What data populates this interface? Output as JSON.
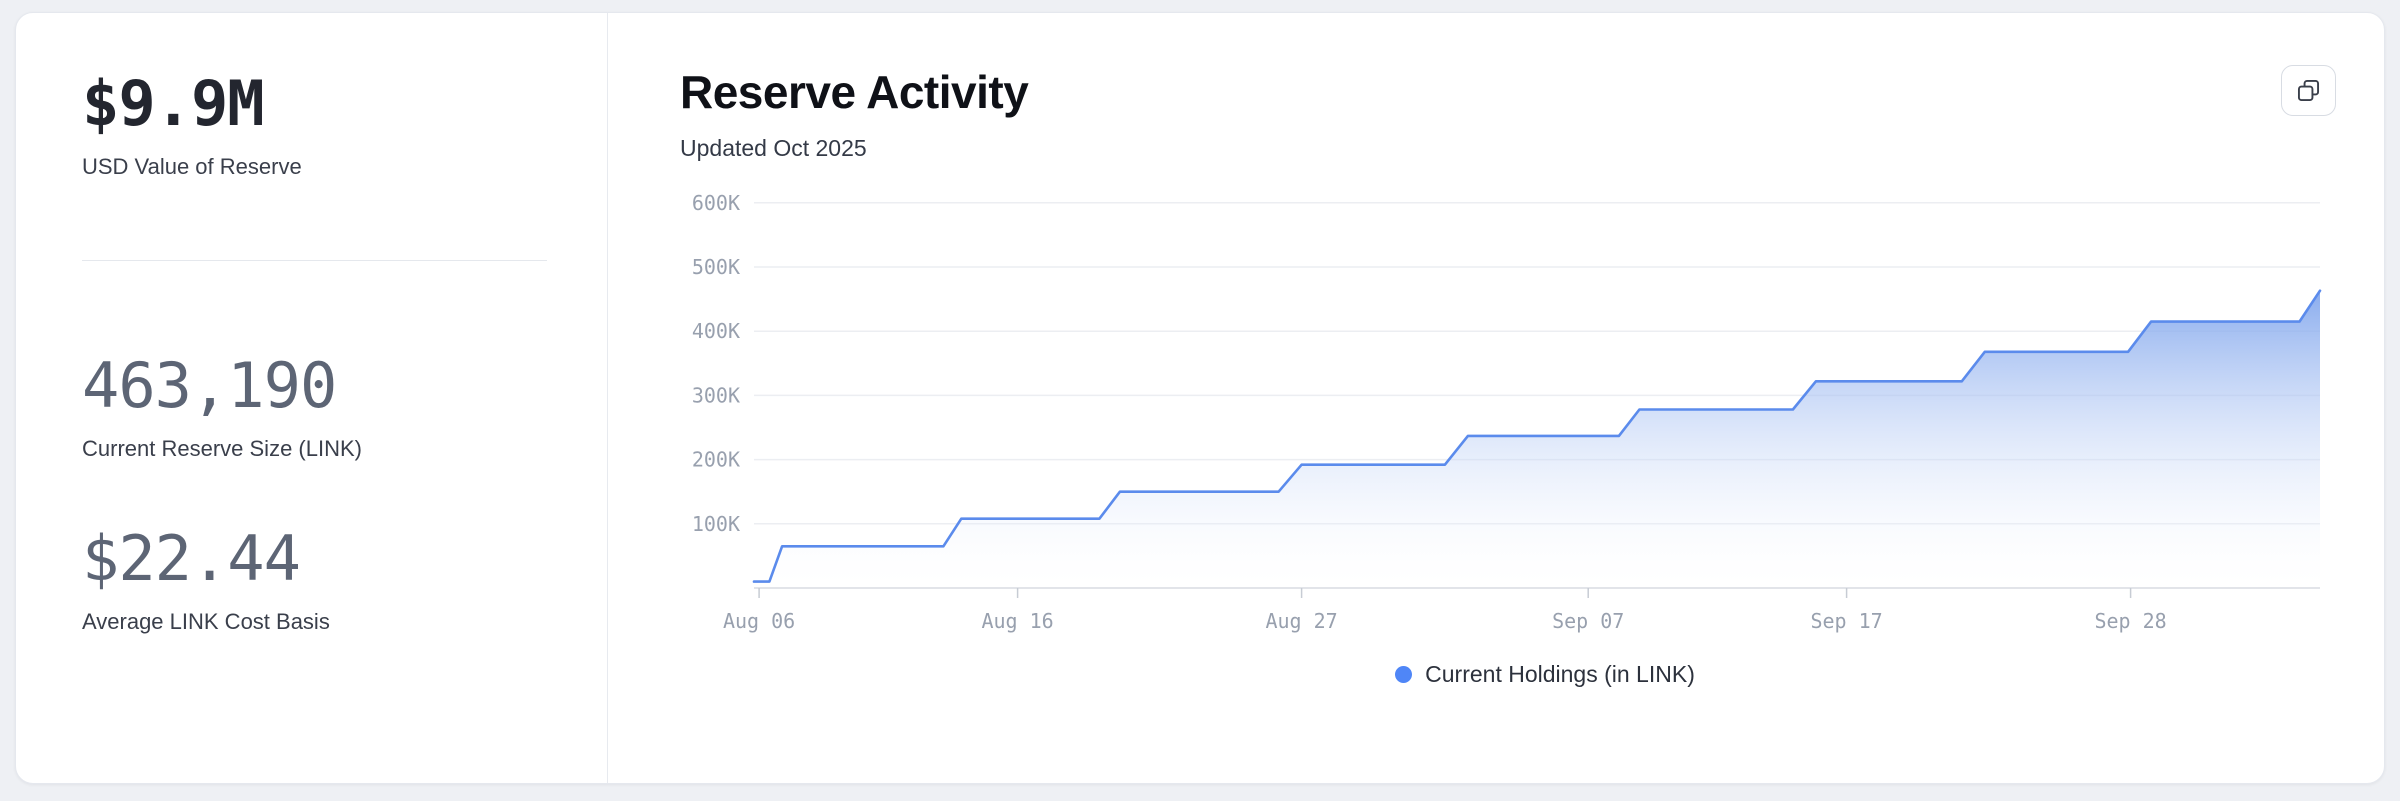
{
  "left_panel": {
    "usd_value": "$9.9M",
    "usd_value_label": "USD Value of Reserve",
    "reserve_size": "463,190",
    "reserve_size_label": "Current Reserve Size (LINK)",
    "cost_basis": "$22.44",
    "cost_basis_label": "Average LINK Cost Basis"
  },
  "chart_header": {
    "title": "Reserve Activity",
    "subtitle": "Updated Oct 2025"
  },
  "icons": {
    "copy": "copy-icon"
  },
  "legend": {
    "label": "Current Holdings (in LINK)",
    "dot_color": "#4f86f7"
  },
  "chart_data": {
    "type": "area",
    "step": true,
    "title": "Reserve Activity",
    "subtitle": "Updated Oct 2025",
    "legend_position": "bottom",
    "grid": true,
    "x_unit": "days since Aug 05 2025",
    "x_domain": [
      0,
      61.2
    ],
    "x_ticks": [
      {
        "pos": 0.2,
        "label": "Aug 06"
      },
      {
        "pos": 10.3,
        "label": "Aug 16"
      },
      {
        "pos": 21.4,
        "label": "Aug 27"
      },
      {
        "pos": 32.6,
        "label": "Sep 07"
      },
      {
        "pos": 42.7,
        "label": "Sep 17"
      },
      {
        "pos": 53.8,
        "label": "Sep 28"
      }
    ],
    "ylim": [
      0,
      620000
    ],
    "y_ticks": [
      {
        "value": 100000,
        "label": "100K"
      },
      {
        "value": 200000,
        "label": "200K"
      },
      {
        "value": 300000,
        "label": "300K"
      },
      {
        "value": 400000,
        "label": "400K"
      },
      {
        "value": 500000,
        "label": "500K"
      },
      {
        "value": 600000,
        "label": "600K"
      }
    ],
    "series": [
      {
        "name": "Current Holdings (in LINK)",
        "points": [
          [
            0,
            10000
          ],
          [
            0.6,
            10000
          ],
          [
            1.1,
            65000
          ],
          [
            7.4,
            65000
          ],
          [
            8.1,
            108000
          ],
          [
            13.5,
            108000
          ],
          [
            14.3,
            150000
          ],
          [
            20.5,
            150000
          ],
          [
            21.4,
            192000
          ],
          [
            27.0,
            192000
          ],
          [
            27.9,
            237000
          ],
          [
            33.8,
            237000
          ],
          [
            34.6,
            278000
          ],
          [
            40.6,
            278000
          ],
          [
            41.5,
            322000
          ],
          [
            47.2,
            322000
          ],
          [
            48.1,
            368000
          ],
          [
            53.7,
            368000
          ],
          [
            54.6,
            415000
          ],
          [
            60.4,
            415000
          ],
          [
            61.2,
            463190
          ]
        ]
      }
    ],
    "colors": {
      "line": "#5b8bec",
      "fill_top": "#7da3ec",
      "fill_bottom": "#ffffff",
      "grid": "#eceef2",
      "axis": "#d9dce2",
      "tick": "#c7ccd4",
      "tick_label": "#98a0ae"
    }
  }
}
